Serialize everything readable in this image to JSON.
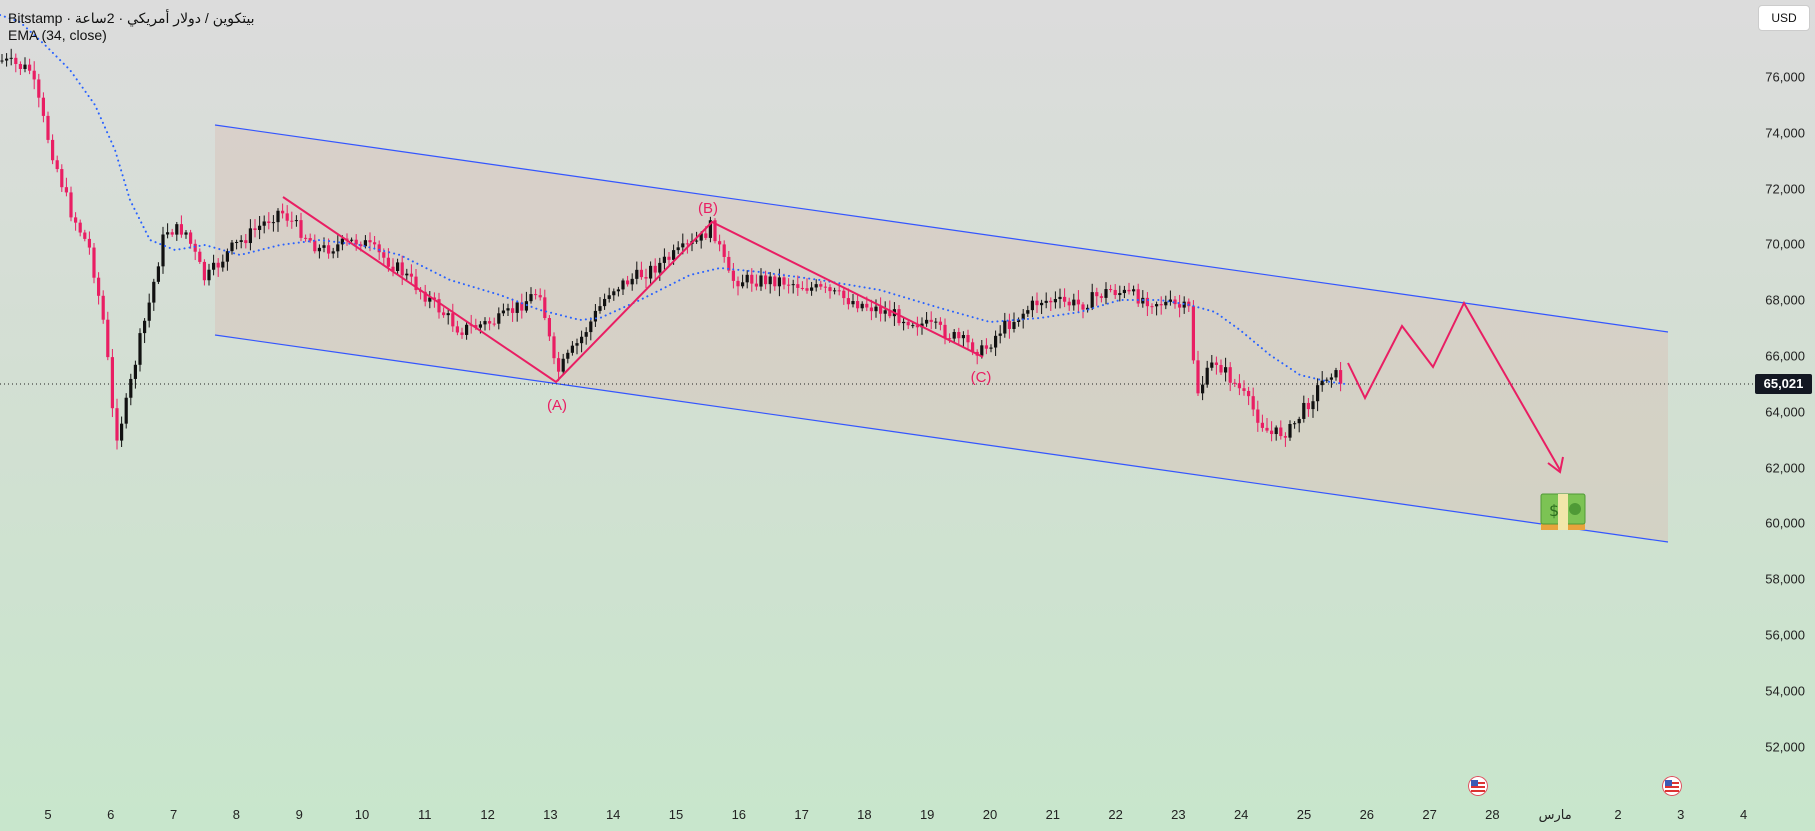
{
  "legend": {
    "line1": "Bitstamp · بيتكوين / دولار أمريكي · 2ساعة",
    "line2": "EMA (34, close)"
  },
  "currency": "USD",
  "current_price_label": "65,021",
  "price_axis": [
    "76,000",
    "74,000",
    "72,000",
    "70,000",
    "68,000",
    "66,000",
    "64,000",
    "62,000",
    "60,000",
    "58,000",
    "56,000",
    "54,000",
    "52,000"
  ],
  "time_axis": [
    "5",
    "6",
    "7",
    "8",
    "9",
    "10",
    "11",
    "12",
    "13",
    "14",
    "15",
    "16",
    "17",
    "18",
    "19",
    "20",
    "21",
    "22",
    "23",
    "24",
    "25",
    "26",
    "27",
    "28",
    "مارس",
    "2",
    "3",
    "4"
  ],
  "wave_labels": {
    "a": "(A)",
    "b": "(B)",
    "c": "(C)"
  },
  "colors": {
    "up_candle": "#111111",
    "down_candle": "#e91e63",
    "ema": "#2962ff",
    "channel": "#3355ff",
    "wave": "#e91e63"
  },
  "icons": [
    "money-bundle-icon",
    "us-flag-icon"
  ]
}
